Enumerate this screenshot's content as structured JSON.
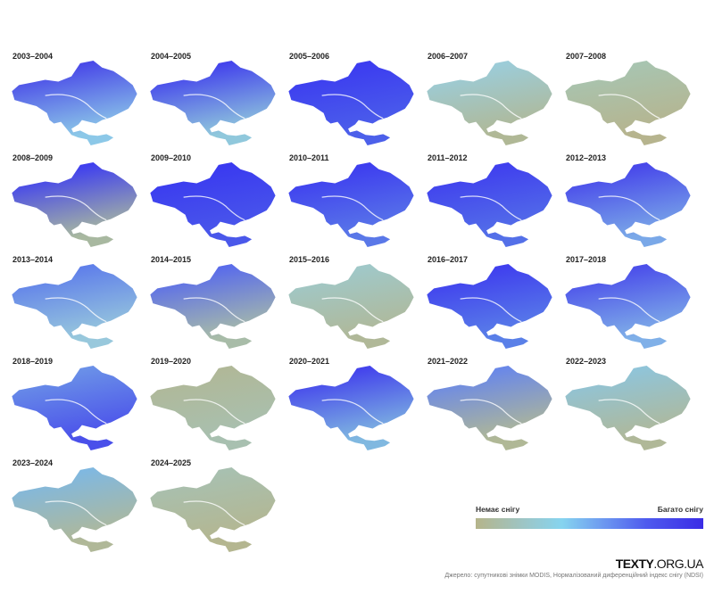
{
  "maps": [
    {
      "label": "2003–2004",
      "north": "#4a4ae8",
      "south": "#8cc8e8"
    },
    {
      "label": "2004–2005",
      "north": "#4444ec",
      "south": "#90c8dc"
    },
    {
      "label": "2005–2006",
      "north": "#3c3cf0",
      "south": "#4c60ea"
    },
    {
      "label": "2006–2007",
      "north": "#9cccd8",
      "south": "#b0b896"
    },
    {
      "label": "2007–2008",
      "north": "#a8c4b0",
      "south": "#b6b48e"
    },
    {
      "label": "2008–2009",
      "north": "#4040ee",
      "south": "#a8b8a0"
    },
    {
      "label": "2009–2010",
      "north": "#3a3af0",
      "south": "#4a58ea"
    },
    {
      "label": "2010–2011",
      "north": "#3e3eef",
      "south": "#5a78e8"
    },
    {
      "label": "2011–2012",
      "north": "#4040ee",
      "south": "#5470e8"
    },
    {
      "label": "2012–2013",
      "north": "#4848ea",
      "south": "#7aa8e8"
    },
    {
      "label": "2013–2014",
      "north": "#6080ea",
      "south": "#98c8dc"
    },
    {
      "label": "2014–2015",
      "north": "#5a6cea",
      "south": "#a8bca8"
    },
    {
      "label": "2015–2016",
      "north": "#a0c8c8",
      "south": "#b0b898"
    },
    {
      "label": "2016–2017",
      "north": "#4040ee",
      "south": "#5a80e8"
    },
    {
      "label": "2017–2018",
      "north": "#4c50ea",
      "south": "#80b0e8"
    },
    {
      "label": "2018–2019",
      "north": "#6a90e8",
      "south": "#4a50ea"
    },
    {
      "label": "2019–2020",
      "north": "#b0b898",
      "south": "#a8c0b0"
    },
    {
      "label": "2020–2021",
      "north": "#4444ec",
      "south": "#80b8e0"
    },
    {
      "label": "2021–2022",
      "north": "#6a88e8",
      "south": "#b0b896"
    },
    {
      "label": "2022–2023",
      "north": "#90c4d8",
      "south": "#b0b898"
    },
    {
      "label": "2023–2024",
      "north": "#80b8e0",
      "south": "#b0b898"
    },
    {
      "label": "2024–2025",
      "north": "#a8c0b0",
      "south": "#b4b690"
    }
  ],
  "legend": {
    "min_label": "Немає снігу",
    "max_label": "Багато снігу",
    "colors": [
      "#b5b48a",
      "#86d4ef",
      "#4e5aee",
      "#3a2ce6"
    ]
  },
  "brand": {
    "bold": "TEXTY",
    "rest": ".ORG.UA"
  },
  "source": "Джерело: супутникові знімки MODIS, Нормалізований диференційний індекс снігу (NDSI)"
}
